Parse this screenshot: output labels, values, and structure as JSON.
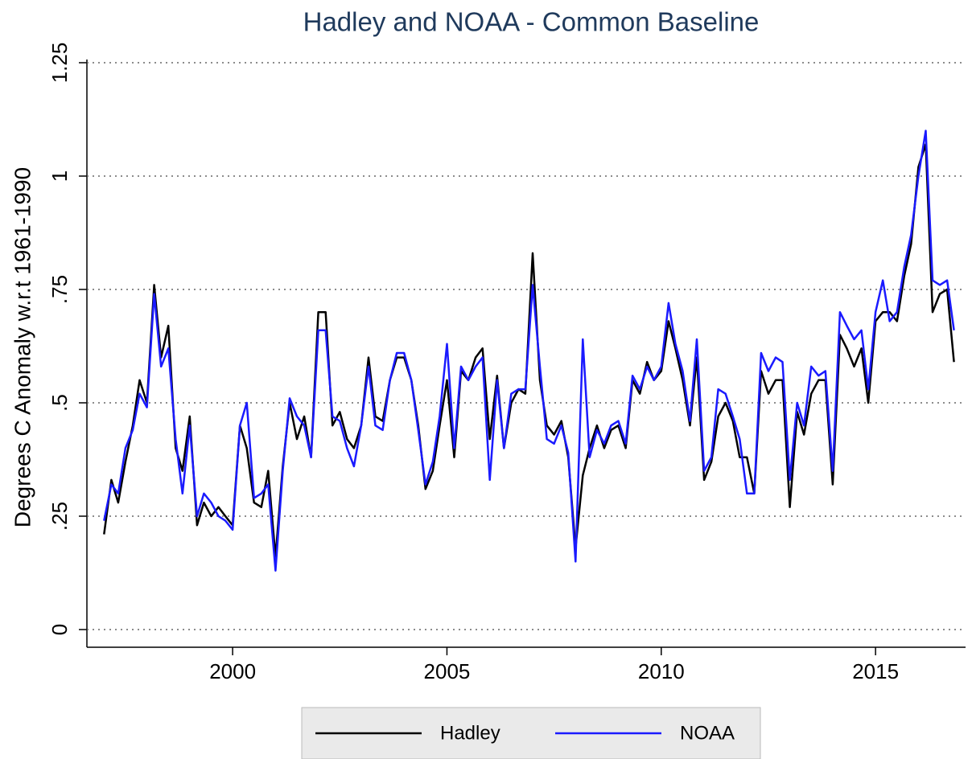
{
  "chart_data": {
    "type": "line",
    "title": "Hadley and NOAA - Common Baseline",
    "y_label": "Degrees C Anomaly w.r.t 1961-1990",
    "xlim": [
      1996.6,
      2017.1
    ],
    "ylim": [
      0,
      1.25
    ],
    "xticks": [
      2000,
      2005,
      2010,
      2015
    ],
    "yticks": [
      {
        "value": 0,
        "label": "0"
      },
      {
        "value": 0.25,
        "label": ".25"
      },
      {
        "value": 0.5,
        "label": ".5"
      },
      {
        "value": 0.75,
        "label": ".75"
      },
      {
        "value": 1,
        "label": "1"
      },
      {
        "value": 1.25,
        "label": "1.25"
      }
    ],
    "grid": true,
    "legend": "bottom",
    "x": [
      1997.0,
      1997.17,
      1997.33,
      1997.5,
      1997.67,
      1997.83,
      1998.0,
      1998.17,
      1998.33,
      1998.5,
      1998.67,
      1998.83,
      1999.0,
      1999.17,
      1999.33,
      1999.5,
      1999.67,
      1999.83,
      2000.0,
      2000.17,
      2000.33,
      2000.5,
      2000.67,
      2000.83,
      2001.0,
      2001.17,
      2001.33,
      2001.5,
      2001.67,
      2001.83,
      2002.0,
      2002.17,
      2002.33,
      2002.5,
      2002.67,
      2002.83,
      2003.0,
      2003.17,
      2003.33,
      2003.5,
      2003.67,
      2003.83,
      2004.0,
      2004.17,
      2004.33,
      2004.5,
      2004.67,
      2004.83,
      2005.0,
      2005.17,
      2005.33,
      2005.5,
      2005.67,
      2005.83,
      2006.0,
      2006.17,
      2006.33,
      2006.5,
      2006.67,
      2006.83,
      2007.0,
      2007.17,
      2007.33,
      2007.5,
      2007.67,
      2007.83,
      2008.0,
      2008.17,
      2008.33,
      2008.5,
      2008.67,
      2008.83,
      2009.0,
      2009.17,
      2009.33,
      2009.5,
      2009.67,
      2009.83,
      2010.0,
      2010.17,
      2010.33,
      2010.5,
      2010.67,
      2010.83,
      2011.0,
      2011.17,
      2011.33,
      2011.5,
      2011.67,
      2011.83,
      2012.0,
      2012.17,
      2012.33,
      2012.5,
      2012.67,
      2012.83,
      2013.0,
      2013.17,
      2013.33,
      2013.5,
      2013.67,
      2013.83,
      2014.0,
      2014.17,
      2014.33,
      2014.5,
      2014.67,
      2014.83,
      2015.0,
      2015.17,
      2015.33,
      2015.5,
      2015.67,
      2015.83,
      2016.0,
      2016.17,
      2016.33,
      2016.5,
      2016.67,
      2016.83
    ],
    "series": [
      {
        "name": "Hadley",
        "color": "#000000",
        "values": [
          0.21,
          0.33,
          0.28,
          0.37,
          0.45,
          0.55,
          0.5,
          0.76,
          0.6,
          0.67,
          0.4,
          0.35,
          0.47,
          0.23,
          0.28,
          0.25,
          0.27,
          0.25,
          0.23,
          0.45,
          0.4,
          0.28,
          0.27,
          0.35,
          0.16,
          0.36,
          0.5,
          0.42,
          0.47,
          0.38,
          0.7,
          0.7,
          0.45,
          0.48,
          0.42,
          0.4,
          0.45,
          0.6,
          0.47,
          0.46,
          0.55,
          0.6,
          0.6,
          0.55,
          0.45,
          0.31,
          0.35,
          0.45,
          0.55,
          0.38,
          0.57,
          0.55,
          0.6,
          0.62,
          0.42,
          0.56,
          0.4,
          0.5,
          0.53,
          0.52,
          0.83,
          0.55,
          0.45,
          0.43,
          0.46,
          0.38,
          0.18,
          0.34,
          0.4,
          0.45,
          0.4,
          0.44,
          0.45,
          0.4,
          0.55,
          0.52,
          0.59,
          0.55,
          0.57,
          0.68,
          0.62,
          0.55,
          0.45,
          0.6,
          0.33,
          0.37,
          0.47,
          0.5,
          0.46,
          0.38,
          0.38,
          0.3,
          0.57,
          0.52,
          0.55,
          0.55,
          0.27,
          0.48,
          0.43,
          0.52,
          0.55,
          0.55,
          0.32,
          0.65,
          0.62,
          0.58,
          0.62,
          0.5,
          0.68,
          0.7,
          0.7,
          0.68,
          0.78,
          0.85,
          1.02,
          1.07,
          0.7,
          0.74,
          0.75,
          0.59
        ]
      },
      {
        "name": "NOAA",
        "color": "#1a1aff",
        "values": [
          0.24,
          0.32,
          0.3,
          0.4,
          0.44,
          0.52,
          0.49,
          0.74,
          0.58,
          0.62,
          0.42,
          0.3,
          0.45,
          0.25,
          0.3,
          0.28,
          0.25,
          0.24,
          0.22,
          0.45,
          0.5,
          0.29,
          0.3,
          0.32,
          0.13,
          0.35,
          0.51,
          0.47,
          0.45,
          0.38,
          0.66,
          0.66,
          0.47,
          0.46,
          0.4,
          0.36,
          0.45,
          0.58,
          0.45,
          0.44,
          0.55,
          0.61,
          0.61,
          0.55,
          0.44,
          0.32,
          0.37,
          0.47,
          0.63,
          0.4,
          0.58,
          0.55,
          0.58,
          0.6,
          0.33,
          0.55,
          0.4,
          0.52,
          0.53,
          0.53,
          0.76,
          0.58,
          0.42,
          0.41,
          0.45,
          0.39,
          0.15,
          0.64,
          0.38,
          0.44,
          0.41,
          0.45,
          0.46,
          0.41,
          0.56,
          0.53,
          0.58,
          0.55,
          0.58,
          0.72,
          0.63,
          0.57,
          0.46,
          0.64,
          0.35,
          0.38,
          0.53,
          0.52,
          0.47,
          0.42,
          0.3,
          0.3,
          0.61,
          0.57,
          0.6,
          0.59,
          0.33,
          0.5,
          0.45,
          0.58,
          0.56,
          0.57,
          0.35,
          0.7,
          0.67,
          0.64,
          0.66,
          0.53,
          0.7,
          0.77,
          0.68,
          0.7,
          0.8,
          0.87,
          1.0,
          1.1,
          0.77,
          0.76,
          0.77,
          0.66
        ]
      }
    ]
  }
}
